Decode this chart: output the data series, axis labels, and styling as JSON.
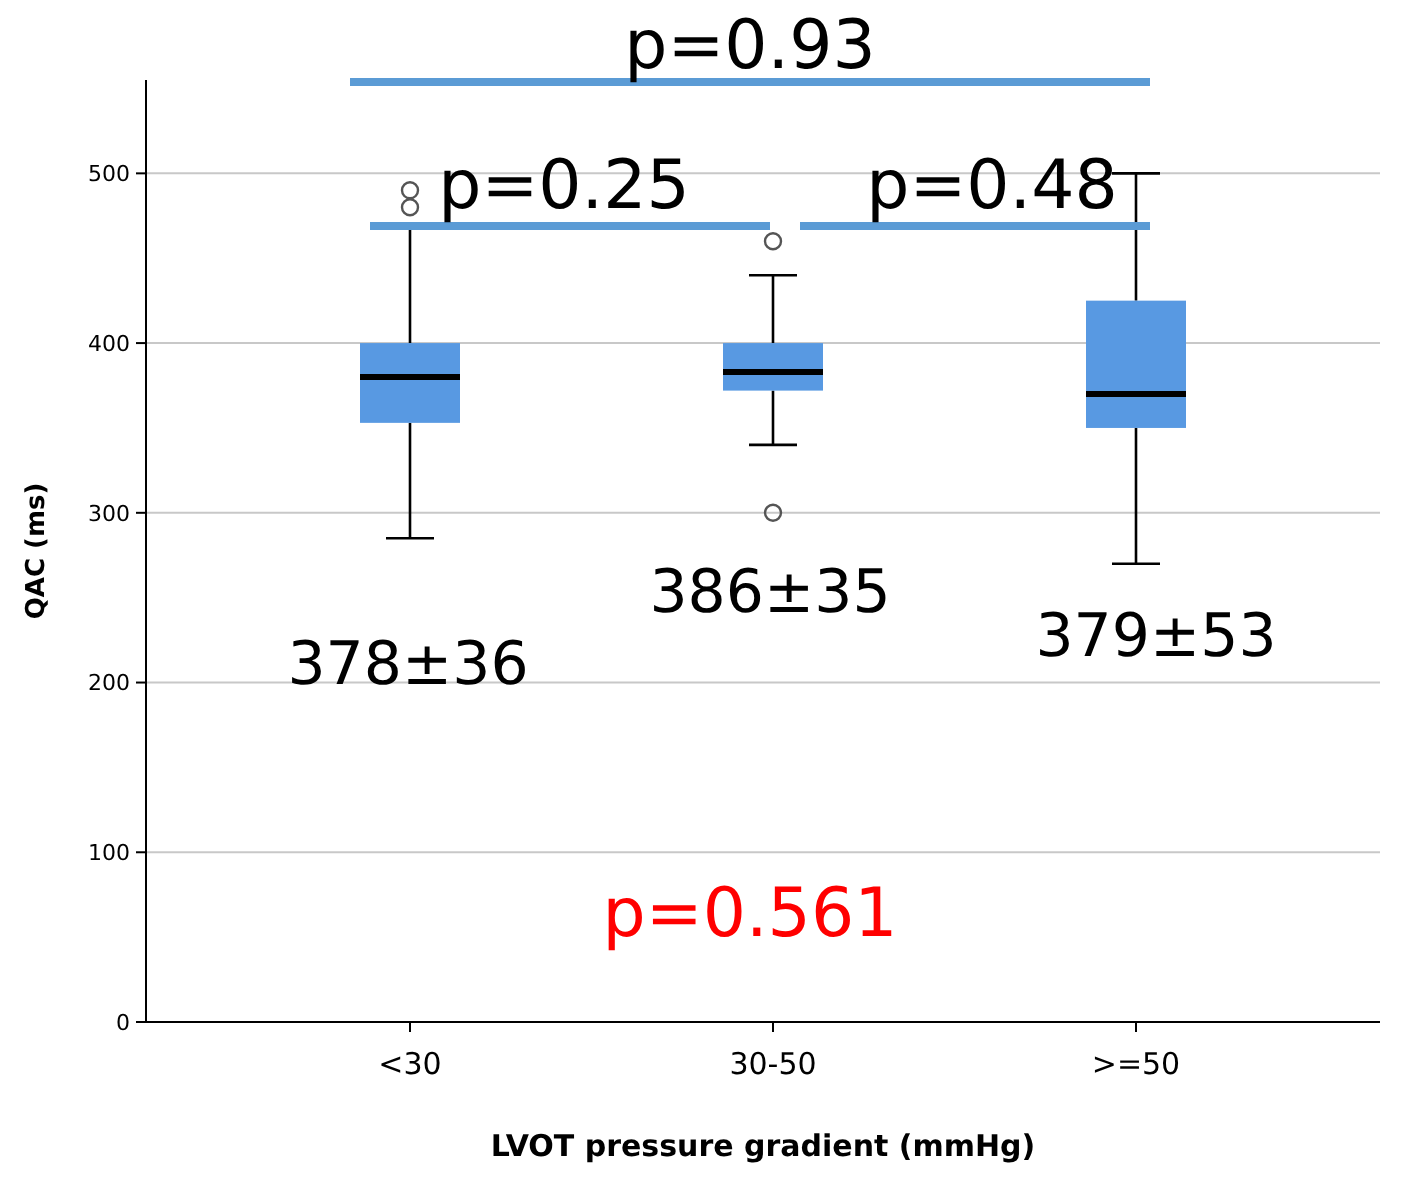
{
  "chart_data": {
    "type": "box",
    "xlabel": "LVOT pressure gradient (mmHg)",
    "ylabel": "QAC (ms)",
    "categories": [
      "<30",
      "30-50",
      ">=50"
    ],
    "color": "#5899e2",
    "ylim": [
      0,
      555
    ],
    "yticks": [
      0,
      100,
      200,
      300,
      400,
      500
    ],
    "grid": "y",
    "boxes": [
      {
        "low": 285,
        "q1": 353,
        "median": 380,
        "q3": 400,
        "high": 470,
        "outliers": [
          480,
          490
        ]
      },
      {
        "low": 340,
        "q1": 372,
        "median": 383,
        "q3": 400,
        "high": 440,
        "outliers": [
          300,
          460
        ]
      },
      {
        "low": 270,
        "q1": 350,
        "median": 370,
        "q3": 425,
        "high": 500
      }
    ],
    "annotations": [
      "p=0.93",
      "p=0.25",
      "p=0.48",
      "378±36",
      "386±35",
      "379±53",
      "p=0.561"
    ]
  }
}
